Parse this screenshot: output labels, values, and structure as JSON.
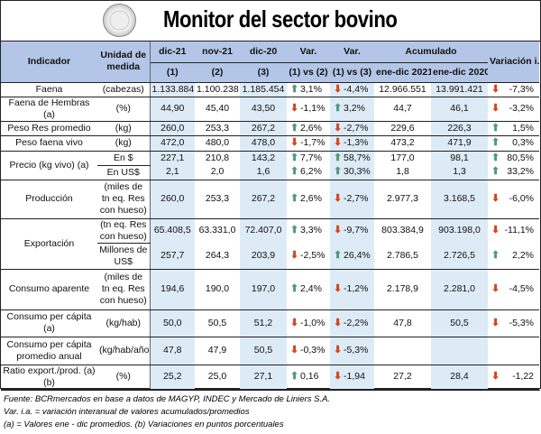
{
  "title": "Monitor del sector bovino",
  "colors": {
    "header_bg": "#b4c6e7",
    "highlight_col": "#ddebf7",
    "up": "#4e9a78",
    "down": "#d6441c"
  },
  "header": {
    "indicador": "Indicador",
    "unidad": "Unidad de medida",
    "dic21": "dic-21",
    "dic21_sub": "(1)",
    "nov21": "nov-21",
    "nov21_sub": "(2)",
    "dic20": "dic-20",
    "dic20_sub": "(3)",
    "var1": "Var.",
    "var1_sub": "(1) vs (2)",
    "var2": "Var.",
    "var2_sub": "(1) vs (3)",
    "acumulado": "Acumulado",
    "acc2021": "ene-dic 2021",
    "acc2020": "ene-dic 2020",
    "varia": "Variación i.a."
  },
  "rows": [
    {
      "indicator": "Faena",
      "subrows": [
        {
          "unit": "(cabezas)",
          "dic21": "1.133.884",
          "nov21": "1.100.238",
          "dic20": "1.185.454",
          "var12": {
            "dir": "up",
            "value": "3,1%"
          },
          "var13": {
            "dir": "down",
            "value": "-4,4%"
          },
          "acc2021": "12.966.551",
          "acc2020": "13.991.421",
          "varia": {
            "dir": "down",
            "value": "-7,3%"
          }
        }
      ]
    },
    {
      "indicator": "Faena de Hembras (a)",
      "subrows": [
        {
          "unit": "(%)",
          "dic21": "44,90",
          "nov21": "45,40",
          "dic20": "43,50",
          "var12": {
            "dir": "down",
            "value": "-1,1%"
          },
          "var13": {
            "dir": "up",
            "value": "3,2%"
          },
          "acc2021": "44,7",
          "acc2020": "46,1",
          "varia": {
            "dir": "down",
            "value": "-3,2%"
          }
        }
      ]
    },
    {
      "indicator": "Peso Res promedio",
      "subrows": [
        {
          "unit": "(kg)",
          "dic21": "260,0",
          "nov21": "253,3",
          "dic20": "267,2",
          "var12": {
            "dir": "up",
            "value": "2,6%"
          },
          "var13": {
            "dir": "down",
            "value": "-2,7%"
          },
          "acc2021": "229,6",
          "acc2020": "226,3",
          "varia": {
            "dir": "up",
            "value": "1,5%"
          }
        }
      ]
    },
    {
      "indicator": "Peso faena vivo",
      "subrows": [
        {
          "unit": "(kg)",
          "dic21": "472,0",
          "nov21": "480,0",
          "dic20": "478,0",
          "var12": {
            "dir": "down",
            "value": "-1,7%"
          },
          "var13": {
            "dir": "down",
            "value": "-1,3%"
          },
          "acc2021": "473,2",
          "acc2020": "471,9",
          "varia": {
            "dir": "up",
            "value": "0,3%"
          }
        }
      ]
    },
    {
      "indicator": "Precio (kg vivo) (a)",
      "subrows": [
        {
          "unit": "En $",
          "dic21": "227,1",
          "nov21": "210,8",
          "dic20": "143,2",
          "var12": {
            "dir": "up",
            "value": "7,7%"
          },
          "var13": {
            "dir": "up",
            "value": "58,7%"
          },
          "acc2021": "177,0",
          "acc2020": "98,1",
          "varia": {
            "dir": "up",
            "value": "80,5%"
          }
        },
        {
          "unit": "En US$",
          "dic21": "2,1",
          "nov21": "2,0",
          "dic20": "1,6",
          "var12": {
            "dir": "up",
            "value": "6,2%"
          },
          "var13": {
            "dir": "up",
            "value": "30,3%"
          },
          "acc2021": "1,8",
          "acc2020": "1,3",
          "varia": {
            "dir": "up",
            "value": "33,2%"
          }
        }
      ]
    },
    {
      "indicator": "Producción",
      "subrows": [
        {
          "unit": "(miles de tn eq. Res con hueso)",
          "dic21": "260,0",
          "nov21": "253,3",
          "dic20": "267,2",
          "var12": {
            "dir": "up",
            "value": "2,6%"
          },
          "var13": {
            "dir": "down",
            "value": "-2,7%"
          },
          "acc2021": "2.977,3",
          "acc2020": "3.168,5",
          "varia": {
            "dir": "down",
            "value": "-6,0%"
          }
        }
      ]
    },
    {
      "indicator": "Exportación",
      "subrows": [
        {
          "unit": "(tn eq. Res con hueso)",
          "dic21": "65.408,5",
          "nov21": "63.331,0",
          "dic20": "72.407,0",
          "var12": {
            "dir": "up",
            "value": "3,3%"
          },
          "var13": {
            "dir": "down",
            "value": "-9,7%"
          },
          "acc2021": "803.384,9",
          "acc2020": "903.198,0",
          "varia": {
            "dir": "down",
            "value": "-11,1%"
          }
        },
        {
          "unit": "Millones de US$",
          "dic21": "257,7",
          "nov21": "264,3",
          "dic20": "203,9",
          "var12": {
            "dir": "down",
            "value": "-2,5%"
          },
          "var13": {
            "dir": "up",
            "value": "26,4%"
          },
          "acc2021": "2.786,5",
          "acc2020": "2.726,5",
          "varia": {
            "dir": "up",
            "value": "2,2%"
          }
        }
      ]
    },
    {
      "indicator": "Consumo aparente",
      "subrows": [
        {
          "unit": "(miles de tn eq. Res con hueso)",
          "dic21": "194,6",
          "nov21": "190,0",
          "dic20": "197,0",
          "var12": {
            "dir": "up",
            "value": "2,4%"
          },
          "var13": {
            "dir": "down",
            "value": "-1,2%"
          },
          "acc2021": "2.178,9",
          "acc2020": "2.281,0",
          "varia": {
            "dir": "down",
            "value": "-4,5%"
          }
        }
      ]
    },
    {
      "indicator": "Consumo per cápita (a)",
      "subrows": [
        {
          "unit": "(kg/hab)",
          "dic21": "50,0",
          "nov21": "50,5",
          "dic20": "51,2",
          "var12": {
            "dir": "down",
            "value": "-1,0%"
          },
          "var13": {
            "dir": "down",
            "value": "-2,2%"
          },
          "acc2021": "47,8",
          "acc2020": "50,5",
          "varia": {
            "dir": "down",
            "value": "-5,3%"
          }
        }
      ]
    },
    {
      "indicator": "Consumo per cápita promedio anual",
      "subrows": [
        {
          "unit": "(kg/hab/año)",
          "dic21": "47,8",
          "nov21": "47,9",
          "dic20": "50,5",
          "var12": {
            "dir": "down",
            "value": "-0,3%"
          },
          "var13": {
            "dir": "down",
            "value": "-5,3%"
          },
          "acc2021": "",
          "acc2020": "",
          "varia": null
        }
      ]
    },
    {
      "indicator": "Ratio export./prod. (a)(b)",
      "subrows": [
        {
          "unit": "(%)",
          "dic21": "25,2",
          "nov21": "25,0",
          "dic20": "27,1",
          "var12": {
            "dir": "up",
            "value": "0,16"
          },
          "var13": {
            "dir": "down",
            "value": "-1,94"
          },
          "acc2021": "27,2",
          "acc2020": "28,4",
          "varia": {
            "dir": "down",
            "value": "-1,22"
          }
        }
      ]
    }
  ],
  "footer": [
    "Fuente: BCRmercados en base a datos de MAGYP, INDEC y Mercado de Liniers S.A.",
    "Var. i.a. = variación interanual de valores acumulados/promedios",
    "(a) = Valores ene - dic promedios. (b) Variaciones en puntos porcentuales"
  ]
}
